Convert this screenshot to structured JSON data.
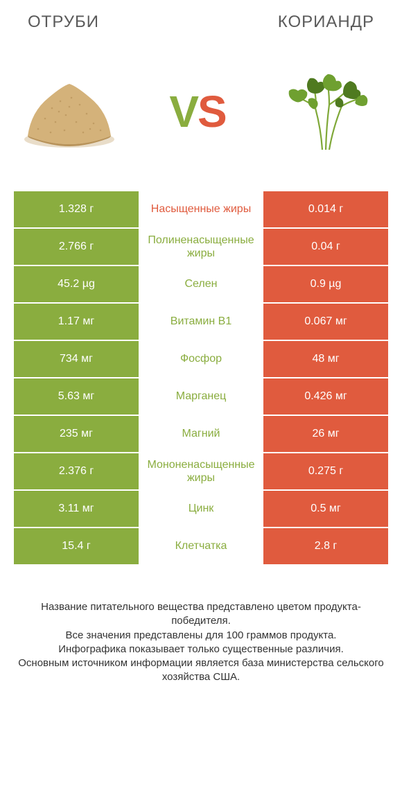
{
  "header": {
    "left_title": "ОТРУБИ",
    "right_title": "КОРИАНДР"
  },
  "vs": {
    "v": "V",
    "s": "S"
  },
  "colors": {
    "left_win": "#8aad3f",
    "right_win": "#e05b3e",
    "mid_left_text": "#e05b3e",
    "mid_right_text": "#8aad3f",
    "row_gap_bg": "#ffffff"
  },
  "comparison": {
    "rows": [
      {
        "left": "1.328 г",
        "label": "Насыщенные жиры",
        "right": "0.014 г",
        "winner": "left"
      },
      {
        "left": "2.766 г",
        "label": "Полиненасыщенные жиры",
        "right": "0.04 г",
        "winner": "left"
      },
      {
        "left": "45.2 µg",
        "label": "Селен",
        "right": "0.9 µg",
        "winner": "left"
      },
      {
        "left": "1.17 мг",
        "label": "Витамин B1",
        "right": "0.067 мг",
        "winner": "left"
      },
      {
        "left": "734 мг",
        "label": "Фосфор",
        "right": "48 мг",
        "winner": "left"
      },
      {
        "left": "5.63 мг",
        "label": "Марганец",
        "right": "0.426 мг",
        "winner": "left"
      },
      {
        "left": "235 мг",
        "label": "Магний",
        "right": "26 мг",
        "winner": "left"
      },
      {
        "left": "2.376 г",
        "label": "Мононенасыщенные жиры",
        "right": "0.275 г",
        "winner": "left"
      },
      {
        "left": "3.11 мг",
        "label": "Цинк",
        "right": "0.5 мг",
        "winner": "left"
      },
      {
        "left": "15.4 г",
        "label": "Клетчатка",
        "right": "2.8 г",
        "winner": "left"
      }
    ]
  },
  "footnote": {
    "line1": "Название питательного вещества представлено цветом продукта-победителя.",
    "line2": "Все значения представлены для 100 граммов продукта.",
    "line3": "Инфографика показывает только существенные различия.",
    "line4": "Основным источником информации является база министерства сельского хозяйства США."
  },
  "illustration": {
    "bran": {
      "fill": "#d4b27a",
      "shadow": "#c19f63",
      "grain": "#b8935a"
    },
    "coriander": {
      "stem": "#7fa838",
      "leaf_light": "#6fa030",
      "leaf_dark": "#4f7a20"
    }
  }
}
